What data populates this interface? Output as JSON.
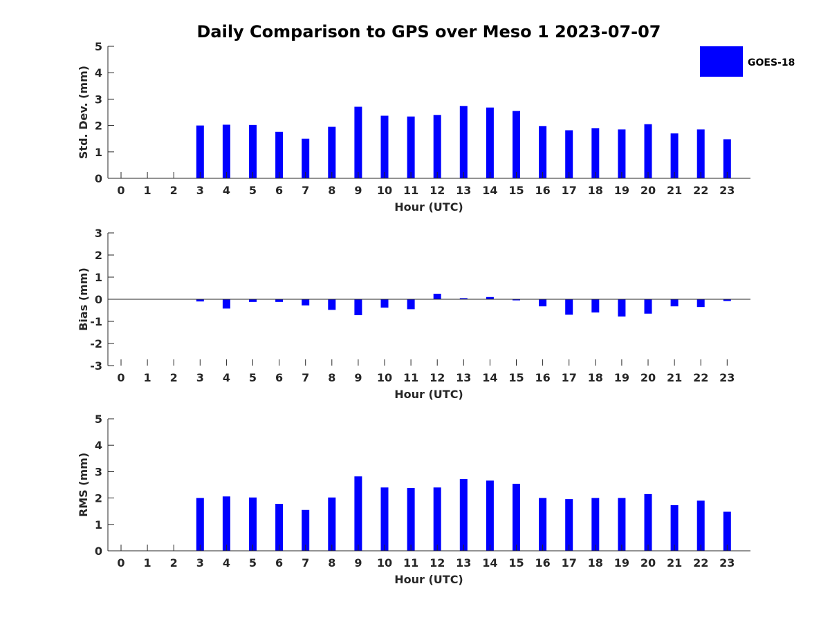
{
  "title": "Daily Comparison to GPS over Meso 1 2023-07-07",
  "legend": {
    "label": "GOES-18",
    "color": "#0000ff",
    "placement": "top-right"
  },
  "chart_data": [
    {
      "type": "bar",
      "ylabel": "Std. Dev. (mm)",
      "xlabel": "Hour (UTC)",
      "ylim": [
        0,
        5
      ],
      "yticks": [
        "0",
        "1",
        "2",
        "3",
        "4",
        "5"
      ],
      "categories": [
        "0",
        "1",
        "2",
        "3",
        "4",
        "5",
        "6",
        "7",
        "8",
        "9",
        "10",
        "11",
        "12",
        "13",
        "14",
        "15",
        "16",
        "17",
        "18",
        "19",
        "20",
        "21",
        "22",
        "23"
      ],
      "series": [
        {
          "name": "GOES-18",
          "values": [
            null,
            null,
            null,
            2.0,
            2.03,
            2.02,
            1.76,
            1.5,
            1.95,
            2.71,
            2.37,
            2.34,
            2.4,
            2.74,
            2.68,
            2.55,
            1.98,
            1.82,
            1.9,
            1.85,
            2.05,
            1.7,
            1.85,
            1.48
          ]
        }
      ]
    },
    {
      "type": "bar",
      "ylabel": "Bias (mm)",
      "xlabel": "Hour (UTC)",
      "ylim": [
        -3,
        3
      ],
      "yticks": [
        "-3",
        "-2",
        "-1",
        "0",
        "1",
        "2",
        "3"
      ],
      "categories": [
        "0",
        "1",
        "2",
        "3",
        "4",
        "5",
        "6",
        "7",
        "8",
        "9",
        "10",
        "11",
        "12",
        "13",
        "14",
        "15",
        "16",
        "17",
        "18",
        "19",
        "20",
        "21",
        "22",
        "23"
      ],
      "series": [
        {
          "name": "GOES-18",
          "values": [
            null,
            null,
            null,
            -0.1,
            -0.42,
            -0.12,
            -0.12,
            -0.28,
            -0.48,
            -0.72,
            -0.38,
            -0.45,
            0.25,
            0.05,
            0.1,
            -0.05,
            -0.32,
            -0.7,
            -0.6,
            -0.78,
            -0.65,
            -0.32,
            -0.35,
            -0.08
          ]
        }
      ]
    },
    {
      "type": "bar",
      "ylabel": "RMS (mm)",
      "xlabel": "Hour (UTC)",
      "ylim": [
        0,
        5
      ],
      "yticks": [
        "0",
        "1",
        "2",
        "3",
        "4",
        "5"
      ],
      "categories": [
        "0",
        "1",
        "2",
        "3",
        "4",
        "5",
        "6",
        "7",
        "8",
        "9",
        "10",
        "11",
        "12",
        "13",
        "14",
        "15",
        "16",
        "17",
        "18",
        "19",
        "20",
        "21",
        "22",
        "23"
      ],
      "series": [
        {
          "name": "GOES-18",
          "values": [
            null,
            null,
            null,
            2.0,
            2.06,
            2.02,
            1.78,
            1.55,
            2.02,
            2.82,
            2.4,
            2.38,
            2.4,
            2.72,
            2.66,
            2.54,
            2.0,
            1.96,
            2.0,
            2.0,
            2.15,
            1.73,
            1.9,
            1.48
          ]
        }
      ]
    }
  ]
}
